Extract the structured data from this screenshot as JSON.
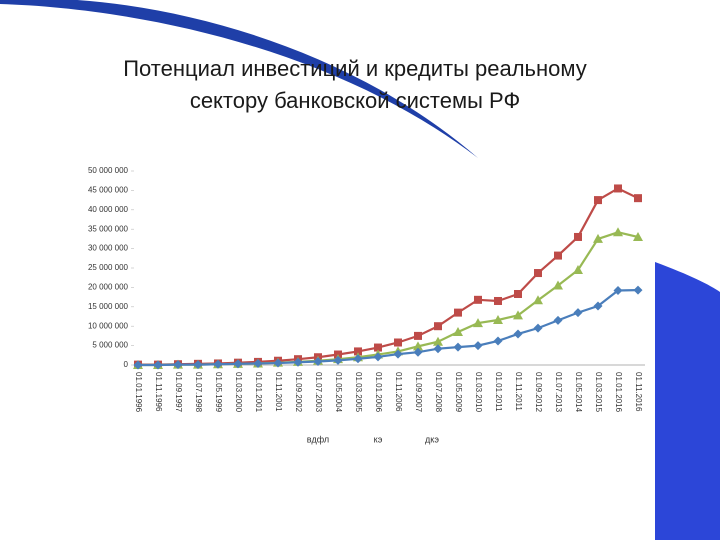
{
  "chart_data": {
    "type": "line",
    "title": [
      "Потенциал инвестиций и кредиты реальному",
      "сектору банковской системы РФ"
    ],
    "categories": [
      "01.01.1996",
      "01.11.1996",
      "01.09.1997",
      "01.07.1998",
      "01.05.1999",
      "01.03.2000",
      "01.01.2001",
      "01.11.2001",
      "01.09.2002",
      "01.07.2003",
      "01.05.2004",
      "01.03.2005",
      "01.01.2006",
      "01.11.2006",
      "01.09.2007",
      "01.07.2008",
      "01.05.2009",
      "01.03.2010",
      "01.01.2011",
      "01.11.2011",
      "01.09.2012",
      "01.07.2013",
      "01.05.2014",
      "01.03.2015",
      "01.01.2016",
      "01.11.2016"
    ],
    "series": [
      {
        "name": "вдфл",
        "color": "#4a7ebb",
        "marker": "diamond",
        "values": [
          0,
          0,
          100000,
          100000,
          200000,
          300000,
          400000,
          500000,
          700000,
          900000,
          1200000,
          1600000,
          2100000,
          2800000,
          3300000,
          4200000,
          4600000,
          5000000,
          6200000,
          8000000,
          9500000,
          11500000,
          13500000,
          15200000,
          19200000,
          19300000
        ]
      },
      {
        "name": "кэ",
        "color": "#be4b48",
        "marker": "square",
        "values": [
          100000,
          100000,
          200000,
          300000,
          400000,
          600000,
          800000,
          1100000,
          1500000,
          2000000,
          2700000,
          3500000,
          4500000,
          5800000,
          7500000,
          10000000,
          13500000,
          16800000,
          16500000,
          18300000,
          23700000,
          28200000,
          33000000,
          42500000,
          45500000,
          43000000
        ]
      },
      {
        "name": "дкэ",
        "color": "#98b954",
        "marker": "triangle",
        "values": [
          0,
          0,
          100000,
          100000,
          200000,
          300000,
          400000,
          600000,
          800000,
          1100000,
          1500000,
          2000000,
          2700000,
          3500000,
          4800000,
          6000000,
          8500000,
          10800000,
          11600000,
          12800000,
          16700000,
          20500000,
          24500000,
          32500000,
          34200000,
          33000000
        ]
      }
    ],
    "ylim": [
      0,
      50000000
    ],
    "yticks": [
      0,
      {
        "value": 5000000,
        "label": "5 000 000"
      },
      {
        "value": 10000000,
        "label": "10 000 000"
      },
      {
        "value": 15000000,
        "label": "15 000 000"
      },
      {
        "value": 20000000,
        "label": "20 000 000"
      },
      {
        "value": 25000000,
        "label": "25 000 000"
      },
      {
        "value": 30000000,
        "label": "30 000 000"
      },
      {
        "value": 35000000,
        "label": "35 000 000"
      },
      {
        "value": 40000000,
        "label": "40 000 000"
      },
      {
        "value": 45000000,
        "label": "45 000 000"
      },
      {
        "value": 50000000,
        "label": "50 000 000"
      }
    ],
    "grid": false,
    "legend": "bottom"
  }
}
